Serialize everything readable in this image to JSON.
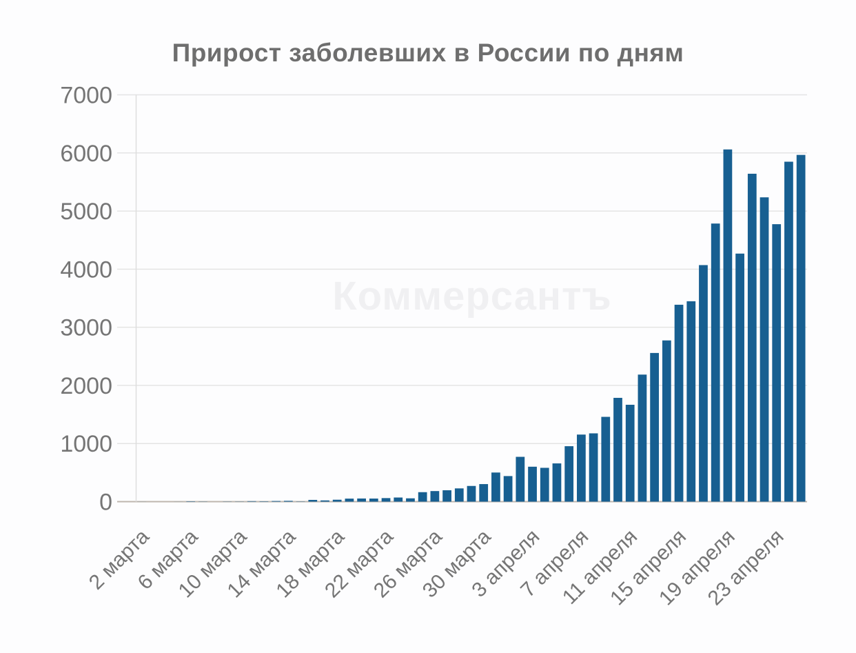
{
  "chart_data": {
    "type": "bar",
    "title": "Прирост заболевших в России по дням",
    "watermark": "Коммерсантъ",
    "bar_color": "#175F91",
    "grid_color": "#e4e4e4",
    "axis_line_color": "#dedede",
    "baseline_color": "#beb6ae",
    "label_color": "#757575",
    "title_color": "#6e6e6e",
    "watermark_color": "#f0f0f2",
    "ylim": [
      0,
      7000
    ],
    "yticks": [
      0,
      1000,
      2000,
      3000,
      4000,
      5000,
      6000,
      7000
    ],
    "ytick_labels": [
      "0",
      "1000",
      "2000",
      "3000",
      "4000",
      "5000",
      "6000",
      "7000"
    ],
    "x_tick_every": 4,
    "x_tick_labels": [
      "2 марта",
      "6 марта",
      "10 марта",
      "14 марта",
      "18 марта",
      "22 марта",
      "26 марта",
      "30 марта",
      "3 апреля",
      "7 апреля",
      "11 апреля",
      "15 апреля",
      "19 апреля",
      "23 апреля"
    ],
    "categories": [
      "2 марта",
      "3 марта",
      "4 марта",
      "5 марта",
      "6 марта",
      "7 марта",
      "8 марта",
      "9 марта",
      "10 марта",
      "11 марта",
      "12 марта",
      "13 марта",
      "14 марта",
      "15 марта",
      "16 марта",
      "17 марта",
      "18 марта",
      "19 марта",
      "20 марта",
      "21 марта",
      "22 марта",
      "23 марта",
      "24 марта",
      "25 марта",
      "26 марта",
      "27 марта",
      "28 марта",
      "29 марта",
      "30 марта",
      "31 марта",
      "1 апреля",
      "2 апреля",
      "3 апреля",
      "4 апреля",
      "5 апреля",
      "6 апреля",
      "7 апреля",
      "8 апреля",
      "9 апреля",
      "10 апреля",
      "11 апреля",
      "12 апреля",
      "13 апреля",
      "14 апреля",
      "15 апреля",
      "16 апреля",
      "17 апреля",
      "18 апреля",
      "19 апреля",
      "20 апреля",
      "21 апреля",
      "22 апреля",
      "23 апреля",
      "24 апреля",
      "25 апреля"
    ],
    "values": [
      1,
      0,
      0,
      1,
      6,
      3,
      0,
      3,
      3,
      8,
      6,
      11,
      14,
      4,
      30,
      21,
      33,
      52,
      54,
      53,
      61,
      71,
      57,
      163,
      182,
      196,
      228,
      270,
      302,
      501,
      440,
      771,
      601,
      582,
      658,
      954,
      1154,
      1175,
      1459,
      1786,
      1667,
      2186,
      2558,
      2774,
      3388,
      3448,
      4070,
      4785,
      6060,
      4268,
      5642,
      5236,
      4774,
      5849,
      5966
    ],
    "legend": null,
    "grid": "horizontal"
  }
}
